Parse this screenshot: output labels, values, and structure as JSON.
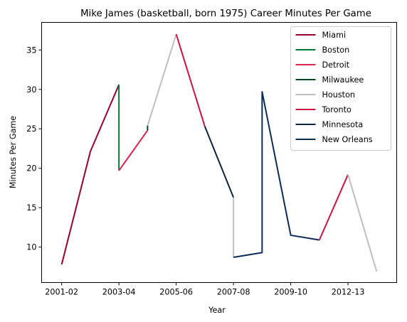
{
  "chart_data": {
    "type": "line",
    "title": "Mike James (basketball, born 1975) Career Minutes Per Game",
    "xlabel": "Year",
    "ylabel": "Minutes Per Game",
    "x_tick_labels": [
      "2001-02",
      "2003-04",
      "2005-06",
      "2007-08",
      "2009-10",
      "2012-13"
    ],
    "x_tick_positions": [
      0,
      2,
      4,
      6,
      8,
      10
    ],
    "y_ticks": [
      10,
      15,
      20,
      25,
      30,
      35
    ],
    "xlim": [
      -0.7,
      11.7
    ],
    "ylim": [
      5.5,
      38.5
    ],
    "legend_position": "upper right",
    "series": [
      {
        "name": "Miami",
        "color": "#98002e",
        "points": [
          [
            0,
            7.8
          ],
          [
            1,
            22.1
          ],
          [
            2,
            30.6
          ]
        ]
      },
      {
        "name": "Boston",
        "color": "#007a33",
        "points": [
          [
            2,
            30.6
          ],
          [
            2,
            19.7
          ]
        ]
      },
      {
        "name": "Detroit",
        "color": "#e0234e",
        "points": [
          [
            2,
            19.7
          ],
          [
            3,
            24.8
          ]
        ]
      },
      {
        "name": "Milwaukee",
        "color": "#00471b",
        "points": [
          [
            3,
            24.8
          ],
          [
            3,
            25.4
          ]
        ]
      },
      {
        "name": "Houston",
        "color": "#bfbfbf",
        "points": [
          [
            3,
            25.4
          ],
          [
            4,
            37.0
          ]
        ]
      },
      {
        "name": "Toronto",
        "color": "#ce1141",
        "points": [
          [
            4,
            37.0
          ],
          [
            5,
            25.3
          ]
        ]
      },
      {
        "name": "Minnesota",
        "color": "#0c2340",
        "points": [
          [
            5,
            25.3
          ],
          [
            6,
            16.3
          ]
        ]
      },
      {
        "name": "Houston",
        "color": "#bfbfbf",
        "points": [
          [
            6,
            16.3
          ],
          [
            6,
            8.7
          ]
        ]
      },
      {
        "name": "New Orleans",
        "color": "#0c2c56",
        "points": [
          [
            6,
            8.7
          ],
          [
            7,
            9.3
          ],
          [
            7,
            29.7
          ],
          [
            8,
            11.5
          ],
          [
            9,
            10.9
          ]
        ]
      },
      {
        "name": "Toronto",
        "color": "#ce1141",
        "points": [
          [
            9,
            10.9
          ],
          [
            10,
            19.2
          ]
        ]
      },
      {
        "name": "Houston",
        "color": "#bfbfbf",
        "points": [
          [
            10,
            19.2
          ],
          [
            11,
            6.9
          ]
        ]
      }
    ],
    "legend": [
      {
        "name": "Miami",
        "color": "#98002e"
      },
      {
        "name": "Boston",
        "color": "#007a33"
      },
      {
        "name": "Detroit",
        "color": "#e0234e"
      },
      {
        "name": "Milwaukee",
        "color": "#00471b"
      },
      {
        "name": "Houston",
        "color": "#bfbfbf"
      },
      {
        "name": "Toronto",
        "color": "#ce1141"
      },
      {
        "name": "Minnesota",
        "color": "#0c2340"
      },
      {
        "name": "New Orleans",
        "color": "#0c2c56"
      }
    ]
  }
}
